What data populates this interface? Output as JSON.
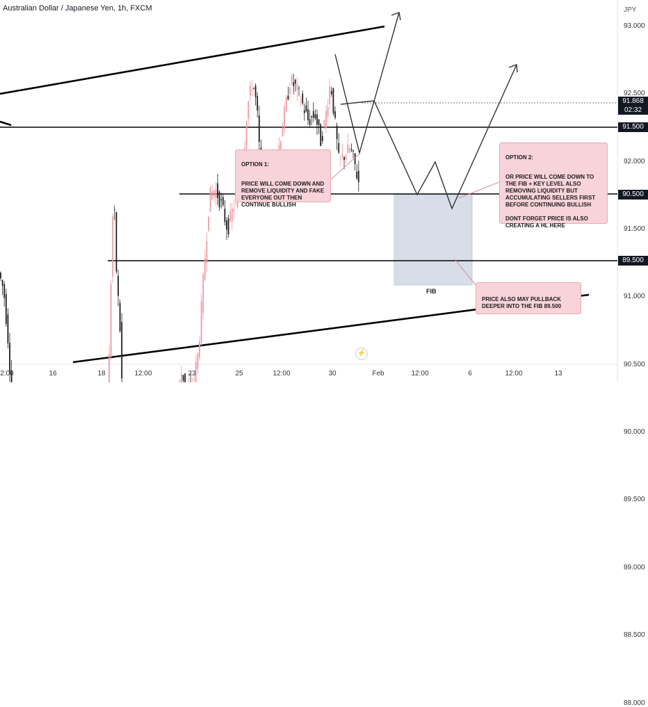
{
  "header": {
    "symbol_title": "Australian Dollar / Japanese Yen, 1h, FXCM"
  },
  "price_axis": {
    "unit": "JPY",
    "ticks": [
      "93.000",
      "92.500",
      "92.000",
      "91.500",
      "91.000",
      "90.500",
      "90.000",
      "89.500",
      "89.000",
      "88.500",
      "88.000"
    ],
    "current_price": "91.868",
    "countdown": "02:32",
    "level_tags": [
      "91.500",
      "90.500",
      "89.500"
    ]
  },
  "time_axis": {
    "ticks": [
      "2:00",
      "16",
      "18",
      "12:00",
      "23",
      "25",
      "12:00",
      "30",
      "Feb",
      "12:00",
      "6",
      "12:00",
      "13"
    ]
  },
  "annotations": {
    "option1": {
      "head": "OPTION 1:",
      "body": "PRICE WILL COME DOWN AND REMOVE LIQUIDITY AND FAKE EVERYONE OUT THEN CONTINUE BULLISH"
    },
    "option2": {
      "head": "OPTION 2:",
      "body": "OR PRICE WILL COME DOWN TO THE FIB + KEY LEVEL ALSO REMOVING LIQUIDITY BUT ACCUMULATING SELLERS FIRST BEFORE CONTINUING BULLISH\n\nDONT FORGET PRICE IS ALSO CREATING A HL HERE"
    },
    "pullback": {
      "body": "PRICE ALSO MAY PULLBACK DEEPER INTO THE FIB 89.500"
    },
    "fib_label": "FIB"
  },
  "colors": {
    "up_candle": "#ef9aa5",
    "down_candle": "#1f1f1f",
    "note_bg": "#f8d3d9",
    "fib_box": "#b8c2d6",
    "line": "#000000",
    "price_tag_bg": "#131722"
  },
  "icons": {
    "live": "lightning-icon"
  }
}
